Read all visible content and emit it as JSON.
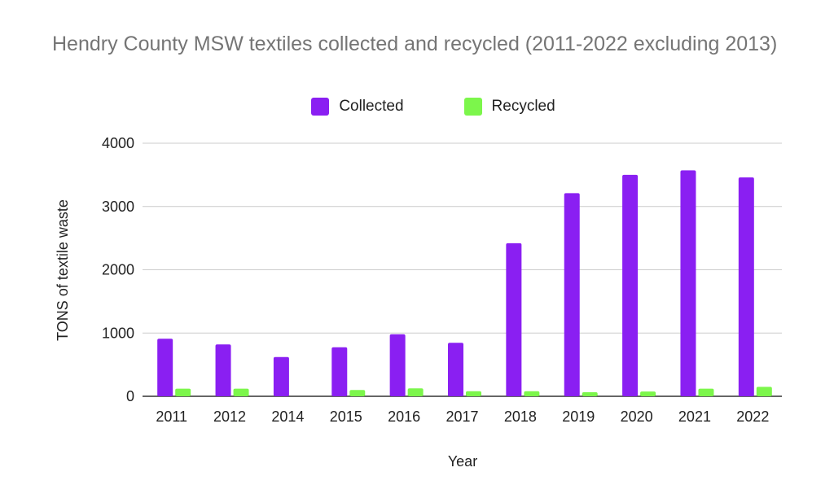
{
  "chart_data": {
    "type": "bar",
    "title": "Hendry County MSW textiles collected and recycled (2011-2022 excluding 2013)",
    "xlabel": "Year",
    "ylabel": "TONS of textile waste",
    "categories": [
      "2011",
      "2012",
      "2014",
      "2015",
      "2016",
      "2017",
      "2018",
      "2019",
      "2020",
      "2021",
      "2022"
    ],
    "series": [
      {
        "name": "Collected",
        "color": "#8a1ff2",
        "values": [
          910,
          820,
          620,
          775,
          980,
          845,
          2420,
          3210,
          3500,
          3570,
          3460
        ]
      },
      {
        "name": "Recycled",
        "color": "#7cf64b",
        "values": [
          120,
          120,
          0,
          100,
          125,
          80,
          80,
          65,
          75,
          120,
          150
        ]
      }
    ],
    "ylim": [
      0,
      4000
    ],
    "yticks": [
      0,
      1000,
      2000,
      3000,
      4000
    ],
    "grid": true,
    "legend": "top-center"
  }
}
